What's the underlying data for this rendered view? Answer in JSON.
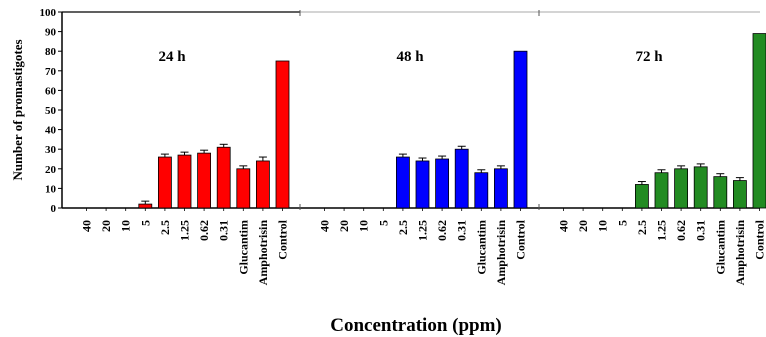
{
  "chart_data": {
    "type": "bar",
    "ylabel": "Number of promastigotes",
    "xlabel": "Concentration (ppm)",
    "ylim": [
      0,
      100
    ],
    "yticks": [
      0,
      10,
      20,
      30,
      40,
      50,
      60,
      70,
      80,
      90,
      100
    ],
    "categories": [
      "40",
      "20",
      "10",
      "5",
      "2.5",
      "1.25",
      "0.62",
      "0.31",
      "Glucantim",
      "Amphotrisin",
      "Control"
    ],
    "panels": [
      {
        "title": "24 h",
        "color": "#ff0000",
        "values": [
          0,
          0,
          0,
          2,
          26,
          27,
          28,
          31,
          20,
          24,
          75
        ],
        "errors": [
          0,
          0,
          0,
          1.5,
          1.5,
          1.5,
          1.5,
          1.5,
          1.5,
          2,
          0
        ]
      },
      {
        "title": "48 h",
        "color": "#0000ff",
        "values": [
          0,
          0,
          0,
          0,
          26,
          24,
          25,
          30,
          18,
          20,
          80
        ],
        "errors": [
          0,
          0,
          0,
          0,
          1.5,
          1.5,
          1.5,
          1.5,
          1.5,
          1.5,
          0
        ]
      },
      {
        "title": "72 h",
        "color": "#228b22",
        "values": [
          0,
          0,
          0,
          0,
          12,
          18,
          20,
          21,
          16,
          14,
          89
        ],
        "errors": [
          0,
          0,
          0,
          0,
          1.5,
          1.5,
          1.5,
          1.5,
          1.5,
          1.5,
          0
        ]
      }
    ]
  }
}
